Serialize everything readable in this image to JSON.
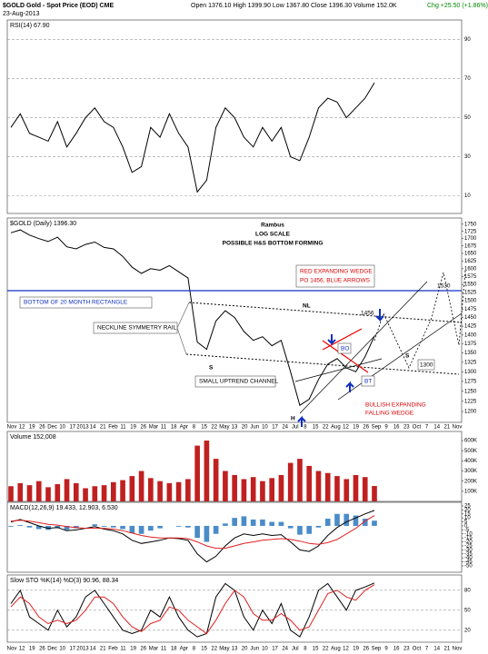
{
  "header": {
    "symbol": "$GOLD Gold - Spot Price (EOD) CME",
    "quote": "Open 1376.10 High 1399.90 Low 1367.80 Close 1396.30 Volume 152.0K",
    "change": "Chg +25.50 (+1.86%)",
    "date": "23-Aug-2013"
  },
  "x_axis_labels": [
    "Nov",
    "12",
    "19",
    "26",
    "Dec",
    "10",
    "17",
    "2013",
    "14",
    "21",
    "Feb",
    "11",
    "19",
    "26",
    "Mar",
    "11",
    "18",
    "Apr",
    "8",
    "15",
    "22",
    "May",
    "13",
    "20",
    "Jun",
    "10",
    "17",
    "24",
    "Jul",
    "8",
    "15",
    "22",
    "Aug",
    "12",
    "19",
    "26",
    "Sep",
    "9",
    "16",
    "23",
    "Oct",
    "7",
    "14",
    "21",
    "Nov"
  ],
  "annotations": {
    "author": "Rambus",
    "scale": "LOG SCALE",
    "headline": "POSSIBLE H&S BOTTOM FORMING",
    "wedge1": "RED EXPANDING WEDGE",
    "wedge2": "PO 1456, BLUE ARROWS",
    "rectangle": "BOTTOM OF 20 MONTH RECTANGLE",
    "rail": "NECKLINE SYMMETRY RAIL",
    "nl": "NL",
    "po": "1456",
    "target": "1530",
    "s_left": "S",
    "head": "H",
    "s_right": "S",
    "channel": "SMALL UPTREND CHANNEL",
    "bo": "BO",
    "bt": "BT",
    "fw1": "BULLISH EXPANDING",
    "fw2": "FALLING WEDGE",
    "support": "1300"
  },
  "chart_data": [
    {
      "type": "line",
      "title": "RSI(14) 67.90",
      "ylim": [
        1,
        100
      ],
      "yticks": [
        10,
        30,
        50,
        70,
        90
      ],
      "grid": true,
      "series": [
        {
          "type": "line",
          "color": "#000000",
          "values": [
            45,
            52,
            42,
            40,
            38,
            48,
            35,
            42,
            50,
            55,
            48,
            45,
            35,
            22,
            25,
            45,
            40,
            52,
            42,
            35,
            12,
            18,
            45,
            55,
            50,
            40,
            35,
            45,
            38,
            45,
            30,
            28,
            40,
            55,
            60,
            58,
            50,
            55,
            60,
            67.9
          ]
        }
      ]
    },
    {
      "type": "line",
      "title": "$GOLD (Daily) 1396.30",
      "log_scale": true,
      "ylim": [
        1174,
        1772
      ],
      "yticks": [
        1200,
        1225,
        1250,
        1275,
        1300,
        1325,
        1350,
        1375,
        1400,
        1425,
        1450,
        1475,
        1500,
        1525,
        1550,
        1575,
        1600,
        1625,
        1650,
        1675,
        1700,
        1725,
        1750
      ],
      "grid": false,
      "series": [
        {
          "type": "line",
          "color": "#000000",
          "values": [
            1720,
            1730,
            1712,
            1700,
            1690,
            1705,
            1672,
            1665,
            1680,
            1688,
            1670,
            1665,
            1640,
            1605,
            1585,
            1600,
            1595,
            1610,
            1590,
            1570,
            1380,
            1360,
            1440,
            1470,
            1450,
            1410,
            1385,
            1395,
            1370,
            1385,
            1300,
            1215,
            1230,
            1280,
            1320,
            1335,
            1310,
            1300,
            1340,
            1396.3
          ]
        }
      ]
    },
    {
      "type": "bar",
      "title": "Volume 152,008",
      "ylim": [
        0,
        690000
      ],
      "yticks": [
        {
          "value": 100000,
          "label": "100K"
        },
        {
          "value": 200000,
          "label": "200K"
        },
        {
          "value": 300000,
          "label": "300K"
        },
        {
          "value": 400000,
          "label": "400K"
        },
        {
          "value": 500000,
          "label": "500K"
        },
        {
          "value": 600000,
          "label": "600K"
        }
      ],
      "grid": false,
      "series": [
        {
          "type": "bar",
          "color": "#c02020",
          "values": [
            150000,
            180000,
            160000,
            200000,
            140000,
            170000,
            220000,
            180000,
            130000,
            150000,
            160000,
            190000,
            210000,
            250000,
            300000,
            230000,
            200000,
            180000,
            190000,
            220000,
            550000,
            600000,
            420000,
            300000,
            260000,
            220000,
            240000,
            200000,
            230000,
            260000,
            380000,
            420000,
            350000,
            300000,
            280000,
            250000,
            220000,
            260000,
            240000,
            152008
          ]
        }
      ]
    },
    {
      "type": "combo",
      "title": "MACD(12,26,9) 19.433, 12.903, 6.530",
      "ylim": [
        -58,
        29.5
      ],
      "yticks": [
        -50,
        -45,
        -40,
        -35,
        -30,
        -25,
        -20,
        -15,
        -10,
        -5,
        0,
        5,
        10,
        15,
        20,
        25
      ],
      "grid": false,
      "series": [
        {
          "type": "bar",
          "color": "#4a8cc8",
          "values": [
            -1,
            1,
            -2,
            -4,
            -5,
            -3,
            -5,
            -3,
            0,
            2,
            -1,
            -2,
            -4,
            -9,
            -10,
            -6,
            -3,
            0,
            -1,
            -2,
            -15,
            -20,
            -10,
            3,
            10,
            12,
            8,
            8,
            5,
            5,
            -3,
            -11,
            -10,
            -2,
            9,
            15,
            15,
            13,
            9,
            6.53
          ]
        },
        {
          "type": "line",
          "color": "#000000",
          "values": [
            5,
            8,
            4,
            0,
            -3,
            -2,
            -6,
            -5,
            -3,
            -1,
            -4,
            -6,
            -10,
            -18,
            -22,
            -20,
            -18,
            -15,
            -16,
            -18,
            -35,
            -45,
            -38,
            -25,
            -15,
            -10,
            -12,
            -10,
            -12,
            -11,
            -20,
            -30,
            -32,
            -25,
            -12,
            -2,
            5,
            10,
            15,
            19.433
          ]
        },
        {
          "type": "line",
          "color": "#e02020",
          "values": [
            6,
            7,
            6,
            4,
            2,
            1,
            -1,
            -2,
            -3,
            -3,
            -3,
            -4,
            -6,
            -9,
            -12,
            -14,
            -15,
            -15,
            -15,
            -16,
            -20,
            -25,
            -28,
            -28,
            -25,
            -22,
            -20,
            -18,
            -17,
            -16,
            -17,
            -19,
            -22,
            -23,
            -21,
            -17,
            -10,
            -3,
            6,
            12.903
          ]
        }
      ]
    },
    {
      "type": "line",
      "title": "Slow STO %K(14) %D(3) 90.96, 88.34",
      "ylim": [
        2,
        103
      ],
      "yticks": [
        20,
        50,
        80
      ],
      "grid": true,
      "series": [
        {
          "type": "line",
          "color": "#000000",
          "values": [
            60,
            80,
            40,
            30,
            20,
            50,
            25,
            40,
            70,
            80,
            60,
            40,
            20,
            15,
            20,
            50,
            40,
            70,
            40,
            20,
            10,
            15,
            70,
            90,
            80,
            40,
            20,
            50,
            30,
            60,
            20,
            10,
            40,
            80,
            90,
            70,
            50,
            80,
            85,
            90.96
          ]
        },
        {
          "type": "line",
          "color": "#e02020",
          "values": [
            55,
            70,
            60,
            40,
            30,
            35,
            30,
            35,
            50,
            70,
            70,
            60,
            40,
            25,
            18,
            30,
            35,
            55,
            50,
            35,
            25,
            15,
            35,
            60,
            80,
            70,
            45,
            35,
            35,
            45,
            35,
            20,
            25,
            50,
            75,
            80,
            70,
            65,
            80,
            88.34
          ]
        }
      ]
    }
  ]
}
